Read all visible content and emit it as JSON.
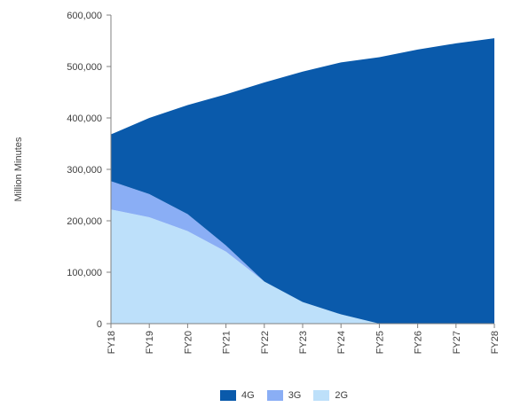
{
  "chart_data": {
    "type": "area",
    "stacked": true,
    "title": "",
    "xlabel": "",
    "ylabel": "Million Minutes",
    "categories": [
      "FY18",
      "FY19",
      "FY20",
      "FY21",
      "FY22",
      "FY23",
      "FY24",
      "FY25",
      "FY26",
      "FY27",
      "FY28"
    ],
    "ylim": [
      0,
      600000
    ],
    "yticks": [
      "600,000",
      "500,000",
      "400,000",
      "300,000",
      "200,000",
      "100,000",
      "0"
    ],
    "ytick_values": [
      600000,
      500000,
      400000,
      300000,
      200000,
      100000,
      0
    ],
    "grid": false,
    "legend_position": "bottom",
    "series": [
      {
        "name": "2G",
        "color": "#bde0fa",
        "values": [
          222000,
          207000,
          180000,
          140000,
          82000,
          42000,
          18000,
          0,
          0,
          0,
          0
        ]
      },
      {
        "name": "3G",
        "color": "#8aaef5",
        "values": [
          55000,
          45000,
          33000,
          12000,
          0,
          0,
          0,
          0,
          0,
          0,
          0
        ]
      },
      {
        "name": "4G",
        "color": "#0a5aab",
        "values": [
          91000,
          148000,
          212000,
          294000,
          387000,
          448000,
          490000,
          518000,
          533000,
          545000,
          555000
        ]
      }
    ],
    "legend_order": [
      "4G",
      "3G",
      "2G"
    ]
  }
}
